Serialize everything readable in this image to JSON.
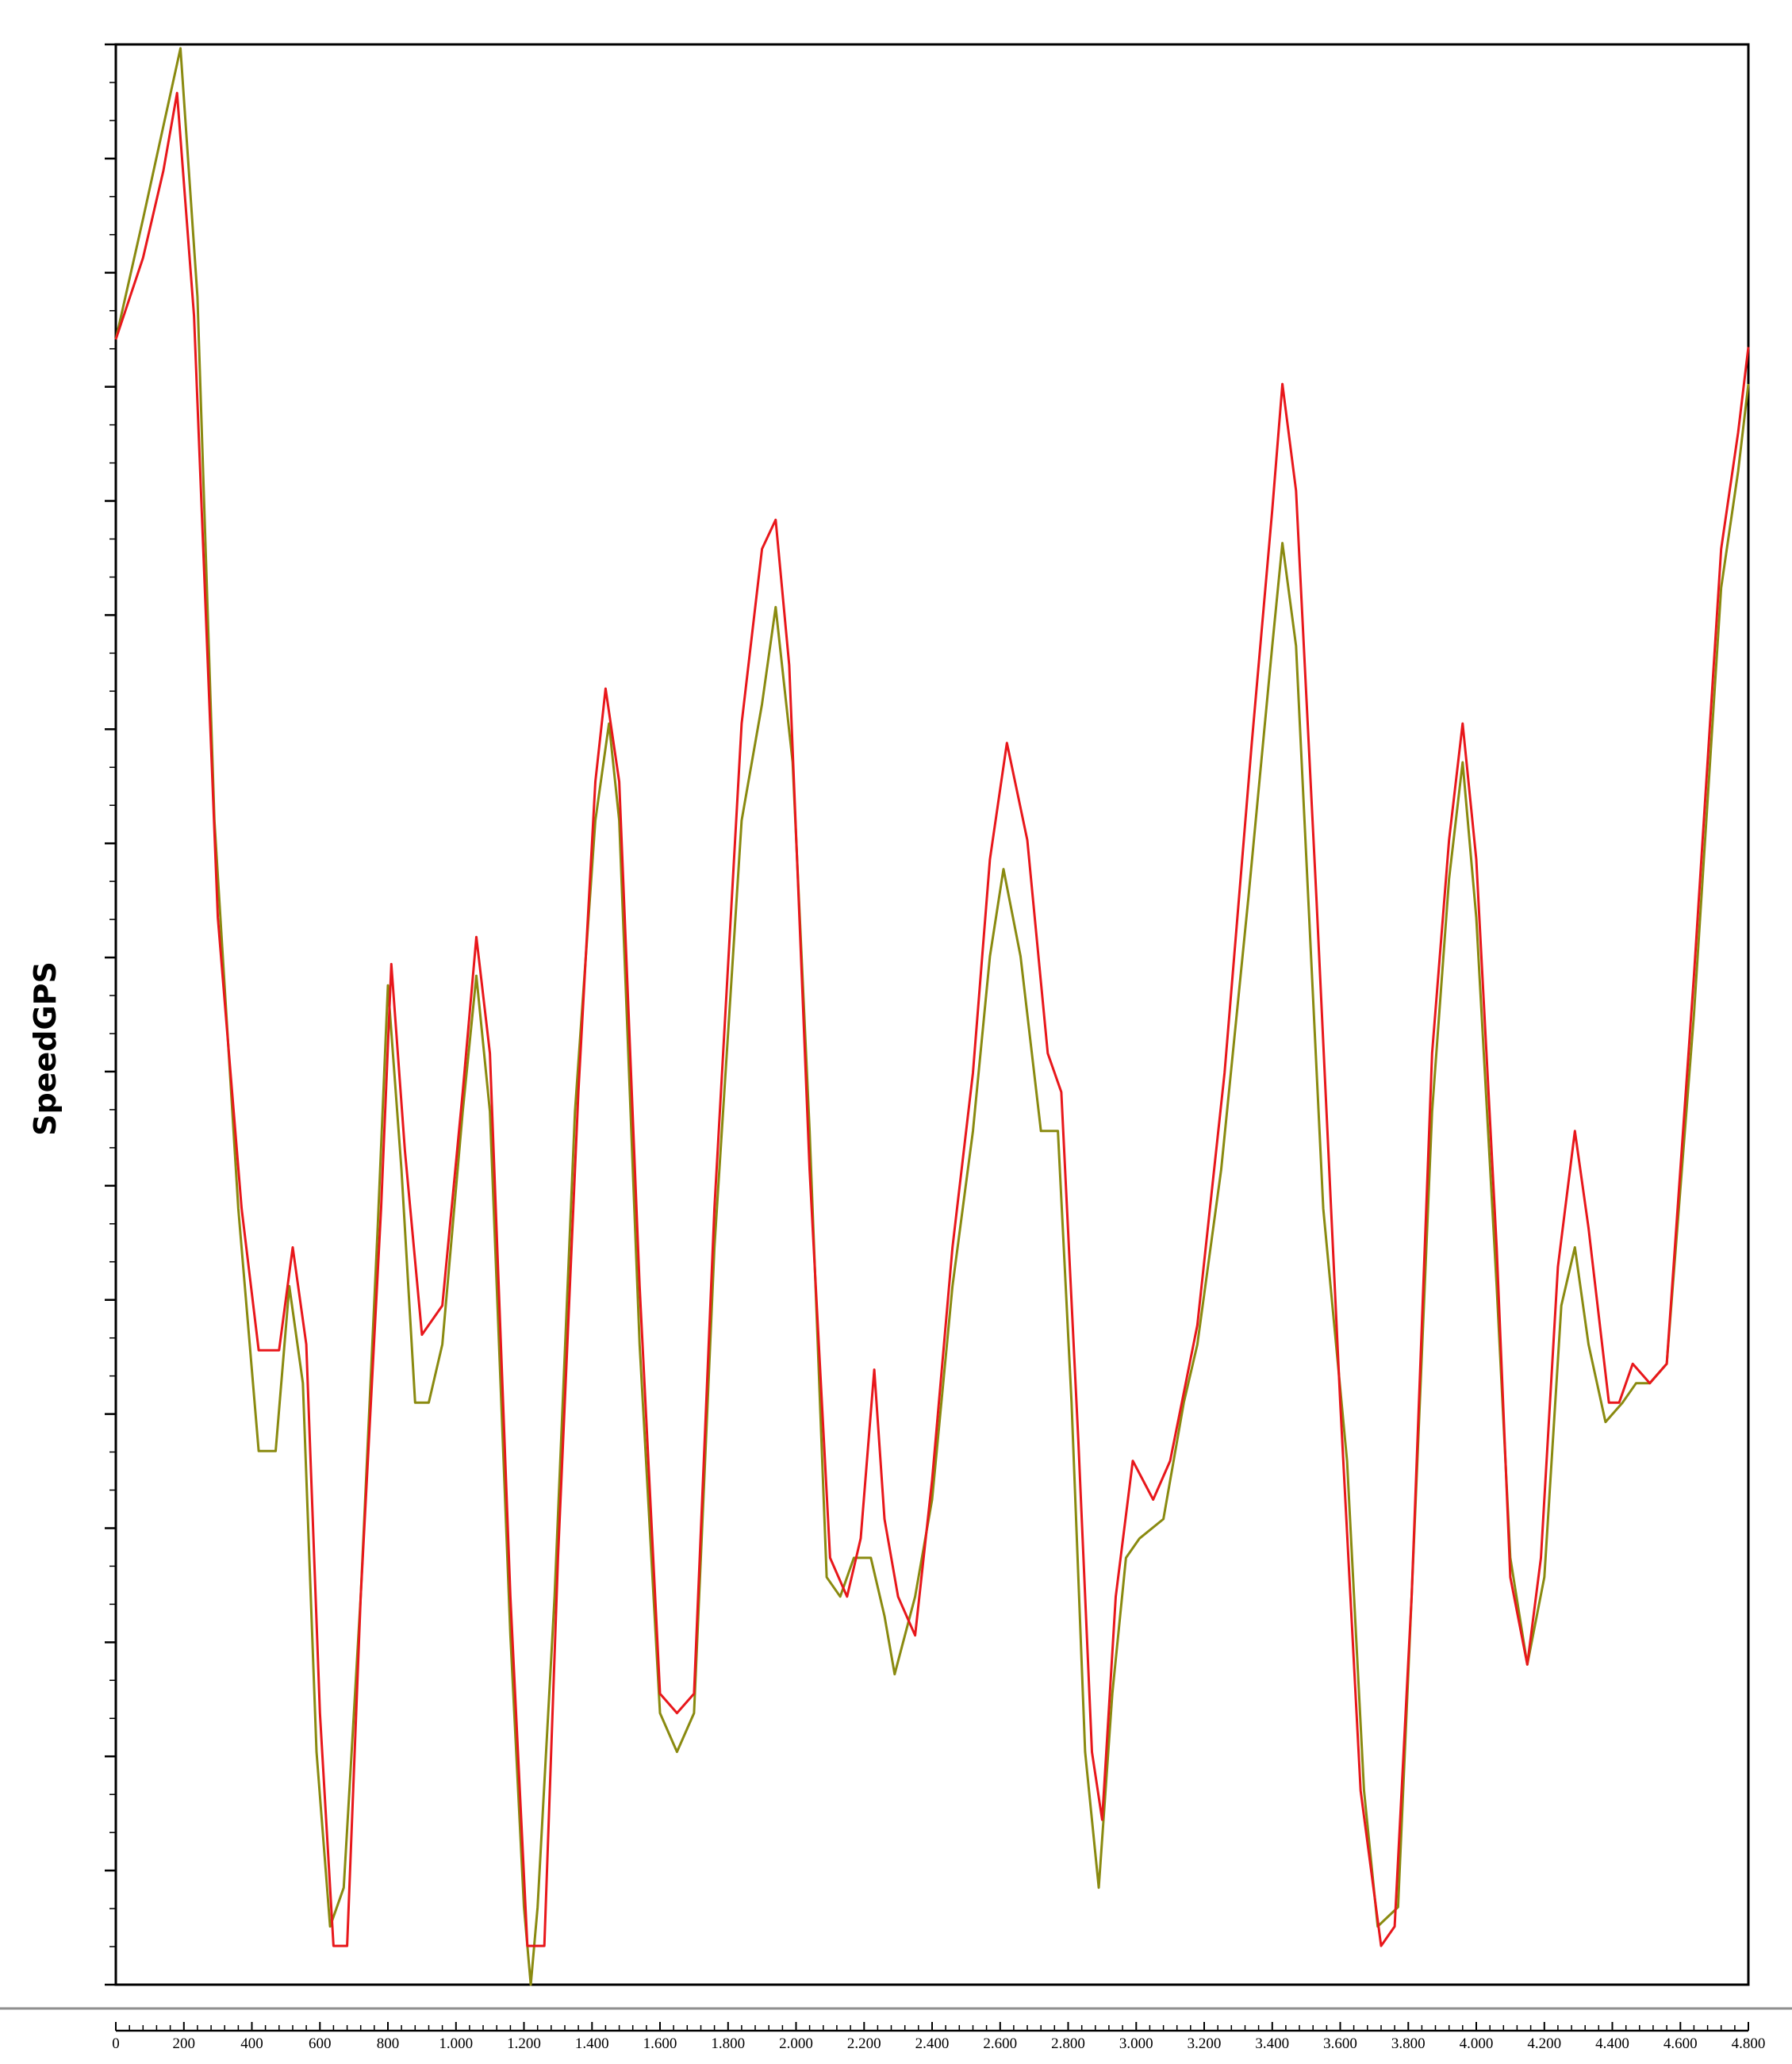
{
  "chart_data": {
    "type": "line",
    "title": "",
    "xlabel": "",
    "ylabel": "SpeedGPS",
    "xlim": [
      0,
      4800
    ],
    "ylim": [
      0,
      1
    ],
    "grid": false,
    "legend": "none",
    "x_ticks": [
      "0",
      "200",
      "400",
      "600",
      "800",
      "1.000",
      "1.200",
      "1.400",
      "1.600",
      "1.800",
      "2.000",
      "2.200",
      "2.400",
      "2.600",
      "2.800",
      "3.000",
      "3.200",
      "3.400",
      "3.600",
      "3.800",
      "4.000",
      "4.200",
      "4.400",
      "4.600",
      "4.800"
    ],
    "series": [
      {
        "color": "#e8171b",
        "points": [
          [
            0,
            0.848
          ],
          [
            80,
            0.89
          ],
          [
            140,
            0.935
          ],
          [
            180,
            0.975
          ],
          [
            230,
            0.86
          ],
          [
            300,
            0.55
          ],
          [
            370,
            0.4
          ],
          [
            420,
            0.327
          ],
          [
            480,
            0.327
          ],
          [
            520,
            0.38
          ],
          [
            560,
            0.33
          ],
          [
            600,
            0.14
          ],
          [
            640,
            0.02
          ],
          [
            680,
            0.02
          ],
          [
            720,
            0.2
          ],
          [
            780,
            0.4
          ],
          [
            810,
            0.526
          ],
          [
            850,
            0.43
          ],
          [
            900,
            0.335
          ],
          [
            960,
            0.35
          ],
          [
            1020,
            0.46
          ],
          [
            1060,
            0.54
          ],
          [
            1100,
            0.48
          ],
          [
            1160,
            0.2
          ],
          [
            1210,
            0.02
          ],
          [
            1260,
            0.02
          ],
          [
            1300,
            0.22
          ],
          [
            1360,
            0.46
          ],
          [
            1410,
            0.62
          ],
          [
            1440,
            0.668
          ],
          [
            1480,
            0.62
          ],
          [
            1540,
            0.36
          ],
          [
            1600,
            0.15
          ],
          [
            1650,
            0.14
          ],
          [
            1700,
            0.15
          ],
          [
            1760,
            0.4
          ],
          [
            1840,
            0.65
          ],
          [
            1900,
            0.74
          ],
          [
            1940,
            0.755
          ],
          [
            1980,
            0.68
          ],
          [
            2040,
            0.42
          ],
          [
            2100,
            0.22
          ],
          [
            2150,
            0.2
          ],
          [
            2190,
            0.23
          ],
          [
            2230,
            0.317
          ],
          [
            2260,
            0.24
          ],
          [
            2300,
            0.2
          ],
          [
            2350,
            0.18
          ],
          [
            2400,
            0.26
          ],
          [
            2460,
            0.38
          ],
          [
            2520,
            0.47
          ],
          [
            2570,
            0.58
          ],
          [
            2620,
            0.64
          ],
          [
            2680,
            0.59
          ],
          [
            2740,
            0.48
          ],
          [
            2780,
            0.46
          ],
          [
            2830,
            0.28
          ],
          [
            2870,
            0.12
          ],
          [
            2900,
            0.085
          ],
          [
            2940,
            0.2
          ],
          [
            2990,
            0.27
          ],
          [
            3050,
            0.25
          ],
          [
            3100,
            0.27
          ],
          [
            3180,
            0.34
          ],
          [
            3260,
            0.47
          ],
          [
            3340,
            0.64
          ],
          [
            3400,
            0.76
          ],
          [
            3430,
            0.825
          ],
          [
            3470,
            0.77
          ],
          [
            3530,
            0.56
          ],
          [
            3600,
            0.3
          ],
          [
            3660,
            0.1
          ],
          [
            3720,
            0.02
          ],
          [
            3760,
            0.03
          ],
          [
            3810,
            0.2
          ],
          [
            3870,
            0.48
          ],
          [
            3920,
            0.59
          ],
          [
            3960,
            0.65
          ],
          [
            4000,
            0.58
          ],
          [
            4060,
            0.38
          ],
          [
            4100,
            0.21
          ],
          [
            4150,
            0.165
          ],
          [
            4190,
            0.22
          ],
          [
            4240,
            0.37
          ],
          [
            4290,
            0.44
          ],
          [
            4330,
            0.39
          ],
          [
            4390,
            0.3
          ],
          [
            4420,
            0.3
          ],
          [
            4460,
            0.32
          ],
          [
            4510,
            0.31
          ],
          [
            4560,
            0.32
          ],
          [
            4640,
            0.52
          ],
          [
            4720,
            0.74
          ],
          [
            4770,
            0.8
          ],
          [
            4800,
            0.844
          ]
        ]
      },
      {
        "color": "#8a8a10",
        "points": [
          [
            0,
            0.848
          ],
          [
            80,
            0.91
          ],
          [
            140,
            0.958
          ],
          [
            190,
            0.998
          ],
          [
            240,
            0.87
          ],
          [
            290,
            0.6
          ],
          [
            360,
            0.4
          ],
          [
            420,
            0.275
          ],
          [
            470,
            0.275
          ],
          [
            510,
            0.36
          ],
          [
            550,
            0.31
          ],
          [
            590,
            0.12
          ],
          [
            630,
            0.03
          ],
          [
            670,
            0.05
          ],
          [
            720,
            0.2
          ],
          [
            770,
            0.39
          ],
          [
            800,
            0.515
          ],
          [
            840,
            0.42
          ],
          [
            880,
            0.3
          ],
          [
            920,
            0.3
          ],
          [
            960,
            0.33
          ],
          [
            1020,
            0.45
          ],
          [
            1060,
            0.52
          ],
          [
            1100,
            0.45
          ],
          [
            1160,
            0.18
          ],
          [
            1200,
            0.04
          ],
          [
            1220,
            0.0
          ],
          [
            1240,
            0.04
          ],
          [
            1290,
            0.2
          ],
          [
            1350,
            0.45
          ],
          [
            1410,
            0.6
          ],
          [
            1450,
            0.65
          ],
          [
            1480,
            0.6
          ],
          [
            1540,
            0.33
          ],
          [
            1600,
            0.14
          ],
          [
            1650,
            0.12
          ],
          [
            1700,
            0.14
          ],
          [
            1760,
            0.38
          ],
          [
            1840,
            0.6
          ],
          [
            1900,
            0.66
          ],
          [
            1940,
            0.71
          ],
          [
            1990,
            0.63
          ],
          [
            2040,
            0.44
          ],
          [
            2090,
            0.21
          ],
          [
            2130,
            0.2
          ],
          [
            2170,
            0.22
          ],
          [
            2220,
            0.22
          ],
          [
            2260,
            0.19
          ],
          [
            2290,
            0.16
          ],
          [
            2350,
            0.2
          ],
          [
            2400,
            0.25
          ],
          [
            2460,
            0.36
          ],
          [
            2520,
            0.44
          ],
          [
            2570,
            0.53
          ],
          [
            2610,
            0.575
          ],
          [
            2660,
            0.53
          ],
          [
            2720,
            0.44
          ],
          [
            2770,
            0.44
          ],
          [
            2810,
            0.3
          ],
          [
            2850,
            0.12
          ],
          [
            2890,
            0.05
          ],
          [
            2930,
            0.15
          ],
          [
            2970,
            0.22
          ],
          [
            3010,
            0.23
          ],
          [
            3080,
            0.24
          ],
          [
            3140,
            0.3
          ],
          [
            3180,
            0.33
          ],
          [
            3250,
            0.42
          ],
          [
            3330,
            0.56
          ],
          [
            3400,
            0.69
          ],
          [
            3430,
            0.743
          ],
          [
            3470,
            0.69
          ],
          [
            3550,
            0.4
          ],
          [
            3620,
            0.27
          ],
          [
            3670,
            0.1
          ],
          [
            3710,
            0.03
          ],
          [
            3770,
            0.04
          ],
          [
            3810,
            0.2
          ],
          [
            3870,
            0.45
          ],
          [
            3920,
            0.57
          ],
          [
            3960,
            0.63
          ],
          [
            4000,
            0.55
          ],
          [
            4060,
            0.36
          ],
          [
            4100,
            0.22
          ],
          [
            4150,
            0.165
          ],
          [
            4200,
            0.21
          ],
          [
            4250,
            0.35
          ],
          [
            4290,
            0.38
          ],
          [
            4330,
            0.33
          ],
          [
            4380,
            0.29
          ],
          [
            4430,
            0.3
          ],
          [
            4470,
            0.31
          ],
          [
            4510,
            0.31
          ],
          [
            4560,
            0.32
          ],
          [
            4640,
            0.5
          ],
          [
            4720,
            0.72
          ],
          [
            4770,
            0.78
          ],
          [
            4800,
            0.825
          ]
        ]
      }
    ]
  }
}
